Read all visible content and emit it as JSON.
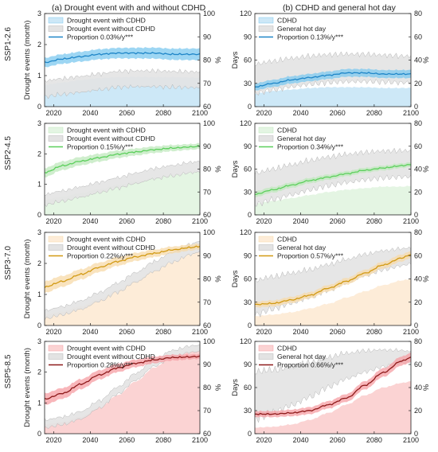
{
  "titles": {
    "a": "(a) Drought event with and without CDHD",
    "b": "(b) CDHD and general hot day"
  },
  "row_labels": [
    "SSP1-2.6",
    "SSP2-4.5",
    "SSP3-7.0",
    "SSP5-8.5"
  ],
  "colors": {
    "ssp126": {
      "fill": "#cde8f7",
      "band": "#7cc8ef",
      "line": "#1f86c8"
    },
    "ssp245": {
      "fill": "#e4f5e3",
      "band": "#bfe8bc",
      "line": "#5ccf5c"
    },
    "ssp370": {
      "fill": "#fdecd8",
      "band": "#f7d9a8",
      "line": "#d29a14"
    },
    "ssp585": {
      "fill": "#fbd3d3",
      "band": "#f59ea3",
      "line": "#8e1a1a"
    },
    "gray_fill": "#e3e3e3",
    "gray_edge": "#b5b5b5"
  },
  "chart_data": [
    {
      "id": "a1",
      "type": "area",
      "ssp": "ssp126",
      "title": "",
      "ylabel": "Drought events (month)",
      "y2label": "%",
      "xlim": [
        2015,
        2100
      ],
      "xticks": [
        2020,
        2040,
        2060,
        2080,
        2100
      ],
      "ylim": [
        0,
        3
      ],
      "yticks": [
        0,
        1,
        2,
        3
      ],
      "y2lim": [
        60,
        100
      ],
      "y2ticks": [
        60,
        70,
        80,
        90,
        100
      ],
      "legend": [
        "Drought event with CDHD",
        "Drought event without CDHD",
        "Proportion 0.03%/y***"
      ],
      "x": [
        2015,
        2025,
        2035,
        2045,
        2055,
        2065,
        2075,
        2085,
        2095,
        2100
      ],
      "with_cdhd": [
        0.7,
        0.78,
        0.86,
        0.92,
        0.95,
        0.96,
        0.95,
        0.95,
        0.94,
        0.93
      ],
      "without_cdhd": [
        0.58,
        0.65,
        0.72,
        0.8,
        0.88,
        0.9,
        0.9,
        0.88,
        0.87,
        0.86
      ],
      "without_band": [
        0.3,
        0.3
      ],
      "proportion": [
        79.0,
        80.5,
        81.5,
        82.5,
        83.0,
        83.0,
        83.0,
        82.5,
        82.5,
        82.5
      ],
      "proportion_band": [
        2.0,
        2.5
      ]
    },
    {
      "id": "b1",
      "type": "area",
      "ssp": "ssp126",
      "title": "",
      "ylabel": "Days",
      "y2label": "%",
      "xlim": [
        2015,
        2100
      ],
      "xticks": [
        2020,
        2040,
        2060,
        2080,
        2100
      ],
      "ylim": [
        0,
        120
      ],
      "yticks": [
        0,
        30,
        60,
        90,
        120
      ],
      "y2lim": [
        0,
        80
      ],
      "y2ticks": [
        0,
        20,
        40,
        60,
        80
      ],
      "legend": [
        "CDHD",
        "General hot day",
        "Proportion 0.13%/y***"
      ],
      "x": [
        2015,
        2025,
        2035,
        2045,
        2055,
        2065,
        2075,
        2085,
        2095,
        2100
      ],
      "cdhd": [
        17,
        20,
        22,
        24,
        25,
        25,
        25,
        24,
        24,
        24
      ],
      "general": [
        36,
        40,
        44,
        47,
        49,
        50,
        50,
        49,
        48,
        48
      ],
      "general_band": [
        22,
        20
      ],
      "proportion": [
        17,
        20,
        23,
        25,
        27,
        29,
        29,
        28,
        28,
        28
      ],
      "proportion_band": [
        3.0,
        3.5
      ]
    },
    {
      "id": "a2",
      "type": "area",
      "ssp": "ssp245",
      "title": "",
      "ylabel": "",
      "y2label": "%",
      "xlim": [
        2015,
        2100
      ],
      "xticks": [
        2020,
        2040,
        2060,
        2080,
        2100
      ],
      "ylim": [
        0,
        3
      ],
      "yticks": [
        0,
        1,
        2,
        3
      ],
      "y2lim": [
        60,
        100
      ],
      "y2ticks": [
        60,
        70,
        80,
        90,
        100
      ],
      "legend": [
        "Drought event with CDHD",
        "Drought event without CDHD",
        "Proportion 0.15%/y***"
      ],
      "x": [
        2015,
        2025,
        2035,
        2045,
        2055,
        2065,
        2075,
        2085,
        2095,
        2100
      ],
      "with_cdhd": [
        0.5,
        0.6,
        0.72,
        0.85,
        0.98,
        1.1,
        1.22,
        1.3,
        1.38,
        1.4
      ],
      "without_cdhd": [
        0.5,
        0.62,
        0.75,
        0.9,
        1.05,
        1.2,
        1.35,
        1.45,
        1.55,
        1.58
      ],
      "without_band": [
        0.2,
        0.2
      ],
      "proportion": [
        78.5,
        81.5,
        83.5,
        85.0,
        86.5,
        87.5,
        88.5,
        89.2,
        89.7,
        90.0
      ],
      "proportion_band": [
        2.0,
        1.2
      ]
    },
    {
      "id": "b2",
      "type": "area",
      "ssp": "ssp245",
      "title": "",
      "ylabel": "Days",
      "y2label": "%",
      "xlim": [
        2015,
        2100
      ],
      "xticks": [
        2020,
        2040,
        2060,
        2080,
        2100
      ],
      "ylim": [
        0,
        120
      ],
      "yticks": [
        0,
        30,
        60,
        90,
        120
      ],
      "y2lim": [
        0,
        80
      ],
      "y2ticks": [
        0,
        20,
        40,
        60,
        80
      ],
      "legend": [
        "CDHD",
        "General hot day",
        "Proportion 0.34%/y***"
      ],
      "x": [
        2015,
        2025,
        2035,
        2045,
        2055,
        2065,
        2075,
        2085,
        2095,
        2100
      ],
      "cdhd": [
        15,
        18,
        22,
        26,
        30,
        33,
        35,
        37,
        37,
        38
      ],
      "general": [
        34,
        40,
        46,
        52,
        57,
        61,
        64,
        66,
        67,
        67
      ],
      "general_band": [
        24,
        20
      ],
      "proportion": [
        18,
        22,
        26,
        30,
        33,
        36,
        39,
        41,
        43,
        44
      ],
      "proportion_band": [
        2.5,
        2.0
      ]
    },
    {
      "id": "a3",
      "type": "area",
      "ssp": "ssp370",
      "title": "",
      "ylabel": "Drought events (month)",
      "y2label": "%",
      "xlim": [
        2015,
        2100
      ],
      "xticks": [
        2020,
        2040,
        2060,
        2080,
        2100
      ],
      "ylim": [
        0,
        3
      ],
      "yticks": [
        0,
        1,
        2,
        3
      ],
      "y2lim": [
        60,
        100
      ],
      "y2ticks": [
        60,
        70,
        80,
        90,
        100
      ],
      "legend": [
        "Drought event with CDHD",
        "Drought event without CDHD",
        "Proportion 0.22%/y***"
      ],
      "x": [
        2015,
        2025,
        2035,
        2045,
        2055,
        2065,
        2075,
        2085,
        2095,
        2100
      ],
      "with_cdhd": [
        0.35,
        0.45,
        0.62,
        0.85,
        1.15,
        1.45,
        1.75,
        2.05,
        2.3,
        2.4
      ],
      "without_cdhd": [
        0.35,
        0.48,
        0.66,
        0.92,
        1.22,
        1.55,
        1.9,
        2.2,
        2.45,
        2.55
      ],
      "without_band": [
        0.15,
        0.2
      ],
      "proportion": [
        76.5,
        79.0,
        82.0,
        85.0,
        87.5,
        89.5,
        91.0,
        92.5,
        93.5,
        94.0
      ],
      "proportion_band": [
        2.5,
        1.2
      ]
    },
    {
      "id": "b3",
      "type": "area",
      "ssp": "ssp370",
      "title": "",
      "ylabel": "Days",
      "y2label": "%",
      "xlim": [
        2015,
        2100
      ],
      "xticks": [
        2020,
        2040,
        2060,
        2080,
        2100
      ],
      "ylim": [
        0,
        120
      ],
      "yticks": [
        0,
        30,
        60,
        90,
        120
      ],
      "y2lim": [
        0,
        80
      ],
      "y2ticks": [
        0,
        20,
        40,
        60,
        80
      ],
      "legend": [
        "CDHD",
        "General hot day",
        "Proportion 0.57%/y***"
      ],
      "x": [
        2015,
        2025,
        2035,
        2045,
        2055,
        2065,
        2075,
        2085,
        2095,
        2100
      ],
      "cdhd": [
        12,
        14,
        17,
        22,
        28,
        36,
        44,
        52,
        58,
        60
      ],
      "general": [
        36,
        42,
        48,
        54,
        62,
        70,
        78,
        84,
        88,
        90
      ],
      "general_band": [
        26,
        12
      ],
      "proportion": [
        18,
        19,
        22,
        26,
        32,
        38,
        45,
        52,
        58,
        61
      ],
      "proportion_band": [
        2.5,
        3.0
      ]
    },
    {
      "id": "a4",
      "type": "area",
      "ssp": "ssp585",
      "title": "",
      "ylabel": "Drought events (month)",
      "y2label": "%",
      "xlim": [
        2015,
        2100
      ],
      "xticks": [
        2020,
        2040,
        2060,
        2080,
        2100
      ],
      "ylim": [
        0,
        3
      ],
      "yticks": [
        0,
        1,
        2,
        3
      ],
      "y2lim": [
        60,
        100
      ],
      "y2ticks": [
        60,
        70,
        80,
        90,
        100
      ],
      "legend": [
        "Drought event with CDHD",
        "Drought event without CDHD",
        "Proportion 0.28%/y***"
      ],
      "x": [
        2015,
        2025,
        2035,
        2045,
        2055,
        2065,
        2075,
        2085,
        2095,
        2100
      ],
      "with_cdhd": [
        0.3,
        0.38,
        0.55,
        0.85,
        1.25,
        1.7,
        2.15,
        2.5,
        2.65,
        2.7
      ],
      "without_cdhd": [
        0.32,
        0.42,
        0.6,
        0.95,
        1.4,
        1.85,
        2.3,
        2.6,
        2.75,
        2.78
      ],
      "without_band": [
        0.15,
        0.12
      ],
      "proportion": [
        75.0,
        77.5,
        81.5,
        85.5,
        88.5,
        90.5,
        92.0,
        93.0,
        93.3,
        93.5
      ],
      "proportion_band": [
        2.5,
        1.0
      ]
    },
    {
      "id": "b4",
      "type": "area",
      "ssp": "ssp585",
      "title": "",
      "ylabel": "Days",
      "y2label": "%",
      "xlim": [
        2015,
        2100
      ],
      "xticks": [
        2020,
        2040,
        2060,
        2080,
        2100
      ],
      "ylim": [
        0,
        120
      ],
      "yticks": [
        0,
        30,
        60,
        90,
        120
      ],
      "y2lim": [
        0,
        80
      ],
      "y2ticks": [
        0,
        20,
        40,
        60,
        80
      ],
      "legend": [
        "CDHD",
        "General hot day",
        "Proportion 0.66%/y***"
      ],
      "x": [
        2015,
        2025,
        2035,
        2045,
        2055,
        2065,
        2075,
        2085,
        2095,
        2100
      ],
      "cdhd": [
        8,
        9,
        12,
        18,
        27,
        38,
        50,
        60,
        66,
        68
      ],
      "general": [
        50,
        55,
        62,
        70,
        80,
        88,
        94,
        98,
        100,
        100
      ],
      "general_band": [
        36,
        8
      ],
      "proportion": [
        17,
        17,
        18,
        20,
        25,
        31,
        42,
        53,
        63,
        66
      ],
      "proportion_band": [
        2.5,
        4.0
      ]
    }
  ]
}
